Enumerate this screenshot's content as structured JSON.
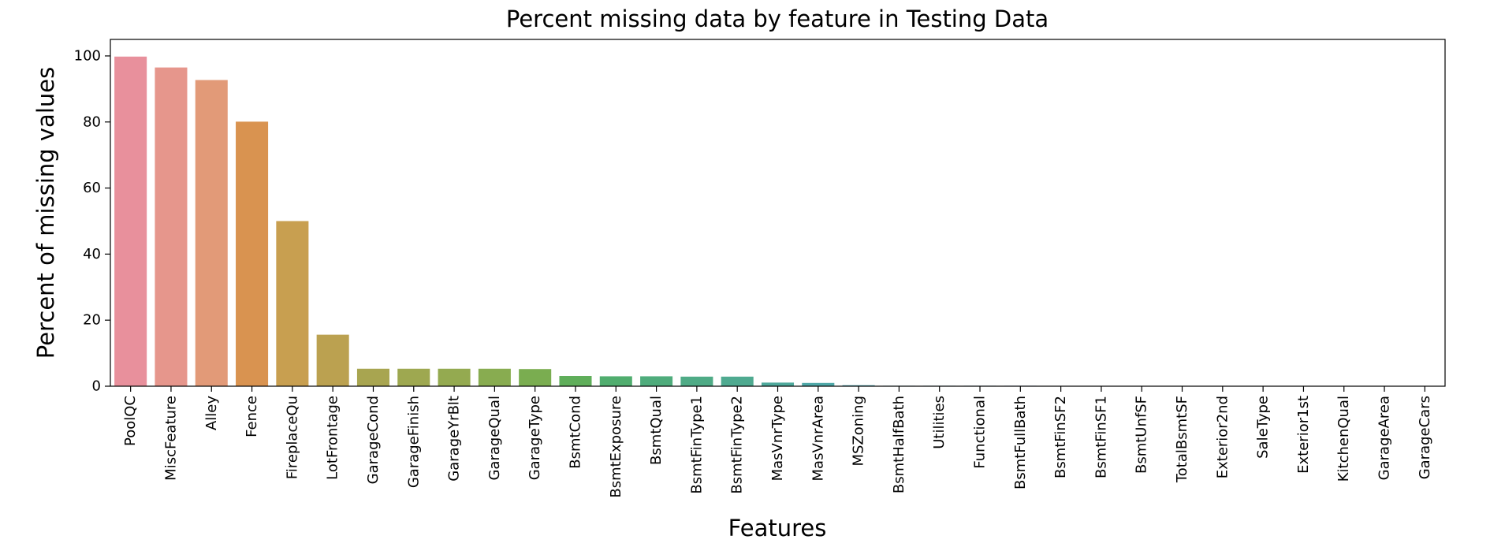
{
  "chart_data": {
    "type": "bar",
    "title": "Percent missing data by feature in Testing Data",
    "xlabel": "Features",
    "ylabel": "Percent of missing values",
    "ylim": [
      0,
      105
    ],
    "yticks": [
      0,
      20,
      40,
      60,
      80,
      100
    ],
    "grid": false,
    "categories": [
      "PoolQC",
      "MiscFeature",
      "Alley",
      "Fence",
      "FireplaceQu",
      "LotFrontage",
      "GarageCond",
      "GarageFinish",
      "GarageYrBlt",
      "GarageQual",
      "GarageType",
      "BsmtCond",
      "BsmtExposure",
      "BsmtQual",
      "BsmtFinType1",
      "BsmtFinType2",
      "MasVnrType",
      "MasVnrArea",
      "MSZoning",
      "BsmtHalfBath",
      "Utilities",
      "Functional",
      "BsmtFullBath",
      "BsmtFinSF2",
      "BsmtFinSF1",
      "BsmtUnfSF",
      "TotalBsmtSF",
      "Exterior2nd",
      "SaleType",
      "Exterior1st",
      "KitchenQual",
      "GarageArea",
      "GarageCars"
    ],
    "values": [
      99.8,
      96.5,
      92.7,
      80.1,
      50.0,
      15.6,
      5.3,
      5.3,
      5.3,
      5.3,
      5.2,
      3.1,
      3.0,
      3.0,
      2.9,
      2.9,
      1.1,
      1.0,
      0.3,
      0.14,
      0.14,
      0.14,
      0.14,
      0.07,
      0.07,
      0.07,
      0.07,
      0.07,
      0.07,
      0.07,
      0.07,
      0.07,
      0.07
    ],
    "colors": [
      "#e8909c",
      "#e6968c",
      "#e29a78",
      "#d99350",
      "#c89f50",
      "#bba150",
      "#a8a550",
      "#9ea850",
      "#94aa50",
      "#88ac50",
      "#7aad50",
      "#5fae5a",
      "#50ad6e",
      "#4fac7c",
      "#4fab86",
      "#4faa90",
      "#4fa99c",
      "#4fa8a8",
      "#50a8b2",
      "#52a6bd",
      "#57a3c8",
      "#5f9fd2",
      "#6f99da",
      "#8592e0",
      "#988be3",
      "#a886e2",
      "#b683dc",
      "#c27fd5",
      "#cc7bcc",
      "#d57bc2",
      "#de7ab5",
      "#e47ca8",
      "#e8809c"
    ]
  }
}
